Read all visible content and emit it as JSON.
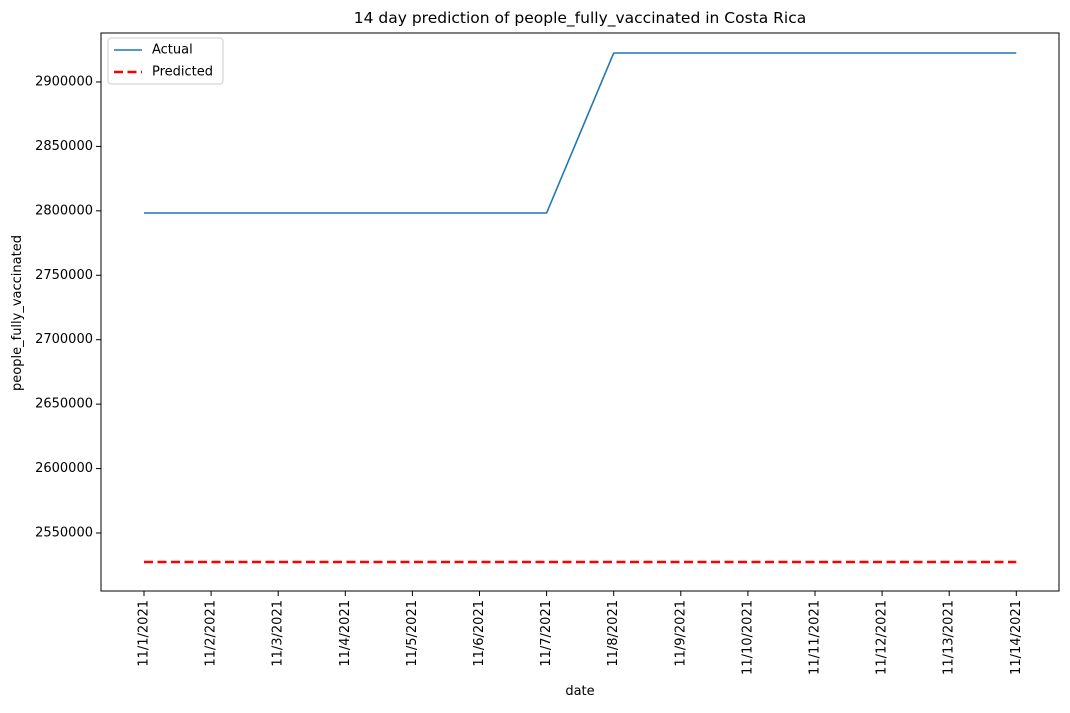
{
  "chart_data": {
    "type": "line",
    "title": "14 day prediction of people_fully_vaccinated in Costa Rica",
    "xlabel": "date",
    "ylabel": "people_fully_vaccinated",
    "categories": [
      "11/1/2021",
      "11/2/2021",
      "11/3/2021",
      "11/4/2021",
      "11/5/2021",
      "11/6/2021",
      "11/7/2021",
      "11/8/2021",
      "11/9/2021",
      "11/10/2021",
      "11/11/2021",
      "11/12/2021",
      "11/13/2021",
      "11/14/2021"
    ],
    "ylim": [
      2505000,
      2938000
    ],
    "yticks": [
      2550000,
      2600000,
      2650000,
      2700000,
      2750000,
      2800000,
      2850000,
      2900000
    ],
    "legend_position": "top-left",
    "grid": false,
    "series": [
      {
        "name": "Actual",
        "color": "#1f77b4",
        "style": "solid",
        "values": [
          2798300,
          2798300,
          2798300,
          2798300,
          2798300,
          2798300,
          2798300,
          2922500,
          2922500,
          2922500,
          2922500,
          2922500,
          2922500,
          2922500
        ]
      },
      {
        "name": "Predicted",
        "color": "#ff0000",
        "style": "dashed",
        "values": [
          2527500,
          2527500,
          2527500,
          2527500,
          2527500,
          2527500,
          2527500,
          2527500,
          2527500,
          2527500,
          2527500,
          2527500,
          2527500,
          2527500
        ]
      }
    ]
  }
}
